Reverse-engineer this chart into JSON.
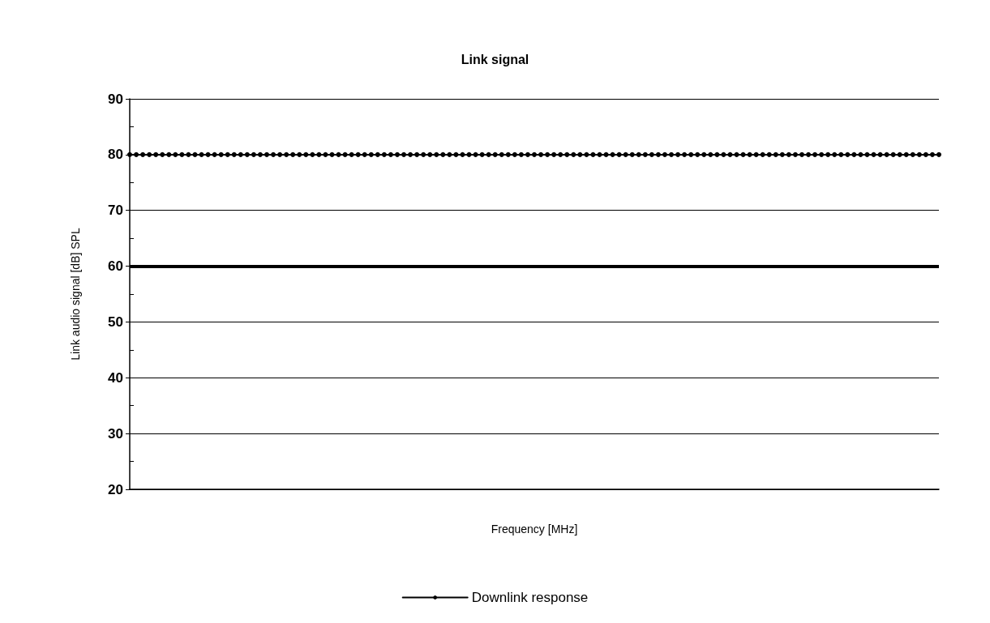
{
  "chart_data": {
    "type": "line",
    "title": "Link signal",
    "xlabel": "Frequency [MHz]",
    "ylabel": "Link audio signal [dB] SPL",
    "categories": [
      null,
      null,
      null,
      null,
      null,
      null,
      null,
      null,
      null,
      null,
      null,
      null,
      null,
      null,
      null,
      null,
      null,
      null,
      null,
      null,
      null,
      null,
      null,
      null,
      null,
      null,
      null,
      null,
      null,
      null,
      null,
      null,
      null,
      null,
      null,
      null,
      null,
      null,
      null,
      null,
      null,
      null,
      null,
      null,
      null,
      null,
      null,
      null,
      null,
      null,
      null,
      null,
      null,
      null,
      null,
      null,
      null,
      null,
      null,
      null,
      null,
      null,
      null,
      null,
      null,
      null,
      null,
      null,
      null,
      null,
      null,
      null,
      null,
      null,
      null,
      null,
      null,
      null,
      null,
      null,
      null,
      null,
      null,
      null,
      null,
      null,
      null,
      null,
      null,
      null,
      null,
      null,
      null,
      null,
      null,
      null,
      null,
      null,
      null,
      null,
      null,
      null,
      null,
      null,
      null,
      null,
      null,
      null,
      null,
      null,
      null,
      null,
      null,
      null,
      null,
      null,
      null,
      null,
      null,
      null,
      null,
      null,
      null,
      null,
      null
    ],
    "series": [
      {
        "name": "Downlink response",
        "color": "#000000",
        "values": [
          80,
          80,
          80,
          80,
          80,
          80,
          80,
          80,
          80,
          80,
          80,
          80,
          80,
          80,
          80,
          80,
          80,
          80,
          80,
          80,
          80,
          80,
          80,
          80,
          80,
          80,
          80,
          80,
          80,
          80,
          80,
          80,
          80,
          80,
          80,
          80,
          80,
          80,
          80,
          80,
          80,
          80,
          80,
          80,
          80,
          80,
          80,
          80,
          80,
          80,
          80,
          80,
          80,
          80,
          80,
          80,
          80,
          80,
          80,
          80,
          80,
          80,
          80,
          80,
          80,
          80,
          80,
          80,
          80,
          80,
          80,
          80,
          80,
          80,
          80,
          80,
          80,
          80,
          80,
          80,
          80,
          80,
          80,
          80,
          80,
          80,
          80,
          80,
          80,
          80,
          80,
          80,
          80,
          80,
          80,
          80,
          80,
          80,
          80,
          80,
          80,
          80,
          80,
          80,
          80,
          80,
          80,
          80,
          80,
          80,
          80,
          80,
          80,
          80,
          80,
          80,
          80,
          80,
          80,
          80,
          80,
          80,
          80,
          80,
          80
        ]
      }
    ],
    "ylim": [
      20,
      90
    ],
    "yticks": [
      20,
      {
        "value": 25,
        "label": null
      },
      30,
      {
        "value": 35,
        "label": null
      },
      40,
      {
        "value": 45,
        "label": null
      },
      50,
      {
        "value": 55,
        "label": null
      },
      60,
      {
        "value": 65,
        "label": null
      },
      70,
      {
        "value": 75,
        "label": null
      },
      80,
      {
        "value": 85,
        "label": null
      },
      90
    ],
    "ref_lines": [
      {
        "axis": "y",
        "value": 60,
        "label": null,
        "color": "#000000"
      }
    ],
    "grid": "y",
    "legend": "bottom",
    "marker": "circle",
    "line_style": "solid",
    "tick_labels": "y"
  }
}
